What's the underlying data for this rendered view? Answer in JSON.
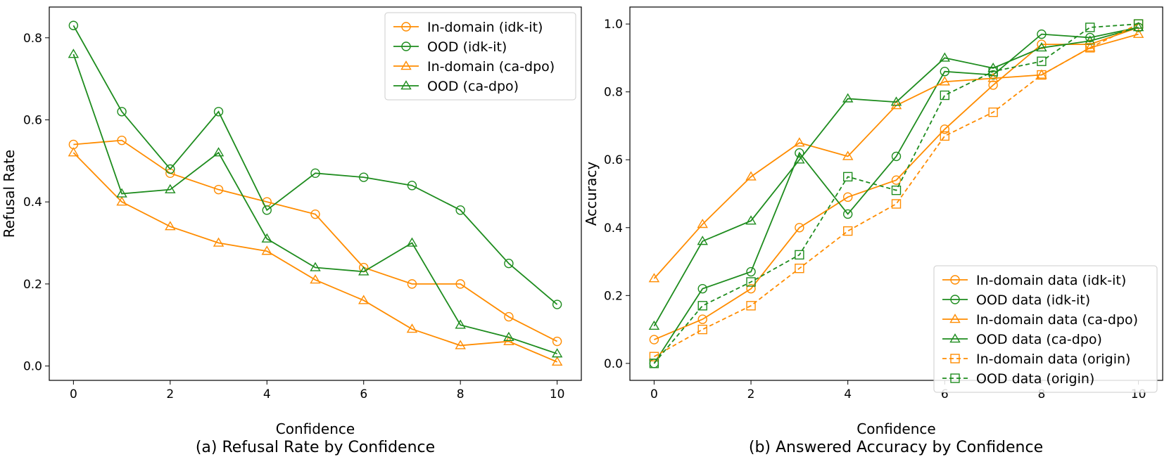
{
  "chart_data": [
    {
      "type": "line",
      "caption": "(a) Refusal Rate by Confidence",
      "xlabel": "Confidence",
      "ylabel": "Refusal Rate",
      "xlim": [
        -0.5,
        10.5
      ],
      "ylim": [
        -0.035,
        0.875
      ],
      "xticks": [
        0,
        2,
        4,
        6,
        8,
        10
      ],
      "xtick_labels": [
        "0",
        "2",
        "4",
        "6",
        "8",
        "10"
      ],
      "yticks": [
        0.0,
        0.2,
        0.4,
        0.6,
        0.8
      ],
      "ytick_labels": [
        "0.0",
        "0.2",
        "0.4",
        "0.6",
        "0.8"
      ],
      "legend_position": "top-right",
      "x": [
        0,
        1,
        2,
        3,
        4,
        5,
        6,
        7,
        8,
        9,
        10
      ],
      "series": [
        {
          "name": "In-domain (idk-it)",
          "color": "#ff8c00",
          "marker": "circle",
          "dashed": false,
          "values": [
            0.54,
            0.55,
            0.47,
            0.43,
            0.4,
            0.37,
            0.24,
            0.2,
            0.2,
            0.12,
            0.06
          ]
        },
        {
          "name": "OOD (idk-it)",
          "color": "#1e8c1e",
          "marker": "circle",
          "dashed": false,
          "values": [
            0.83,
            0.62,
            0.48,
            0.62,
            0.38,
            0.47,
            0.46,
            0.44,
            0.38,
            0.25,
            0.15
          ]
        },
        {
          "name": "In-domain (ca-dpo)",
          "color": "#ff8c00",
          "marker": "triangle",
          "dashed": false,
          "values": [
            0.52,
            0.4,
            0.34,
            0.3,
            0.28,
            0.21,
            0.16,
            0.09,
            0.05,
            0.06,
            0.01
          ]
        },
        {
          "name": "OOD (ca-dpo)",
          "color": "#1e8c1e",
          "marker": "triangle",
          "dashed": false,
          "values": [
            0.76,
            0.42,
            0.43,
            0.52,
            0.31,
            0.24,
            0.23,
            0.3,
            0.1,
            0.07,
            0.03
          ]
        }
      ]
    },
    {
      "type": "line",
      "caption": "(b) Answered Accuracy by Confidence",
      "xlabel": "Confidence",
      "ylabel": "Accuracy",
      "xlim": [
        -0.5,
        10.5
      ],
      "ylim": [
        -0.05,
        1.05
      ],
      "xticks": [
        0,
        2,
        4,
        6,
        8,
        10
      ],
      "xtick_labels": [
        "0",
        "2",
        "4",
        "6",
        "8",
        "10"
      ],
      "yticks": [
        0.0,
        0.2,
        0.4,
        0.6,
        0.8,
        1.0
      ],
      "ytick_labels": [
        "0.0",
        "0.2",
        "0.4",
        "0.6",
        "0.8",
        "1.0"
      ],
      "legend_position": "bottom-right",
      "x": [
        0,
        1,
        2,
        3,
        4,
        5,
        6,
        7,
        8,
        9,
        10
      ],
      "series": [
        {
          "name": "In-domain data (idk-it)",
          "color": "#ff8c00",
          "marker": "circle",
          "dashed": false,
          "values": [
            0.07,
            0.13,
            0.22,
            0.4,
            0.49,
            0.54,
            0.69,
            0.82,
            0.94,
            0.94,
            0.99
          ]
        },
        {
          "name": "OOD data (idk-it)",
          "color": "#1e8c1e",
          "marker": "circle",
          "dashed": false,
          "values": [
            0.0,
            0.22,
            0.27,
            0.62,
            0.44,
            0.61,
            0.86,
            0.85,
            0.97,
            0.96,
            0.99
          ]
        },
        {
          "name": "In-domain data (ca-dpo)",
          "color": "#ff8c00",
          "marker": "triangle",
          "dashed": false,
          "values": [
            0.25,
            0.41,
            0.55,
            0.65,
            0.61,
            0.76,
            0.83,
            0.84,
            0.85,
            0.93,
            0.97
          ]
        },
        {
          "name": "OOD data (ca-dpo)",
          "color": "#1e8c1e",
          "marker": "triangle",
          "dashed": false,
          "values": [
            0.11,
            0.36,
            0.42,
            0.6,
            0.78,
            0.77,
            0.9,
            0.87,
            0.93,
            0.95,
            0.99
          ]
        },
        {
          "name": "In-domain data (origin)",
          "color": "#ff8c00",
          "marker": "square",
          "dashed": true,
          "values": [
            0.02,
            0.1,
            0.17,
            0.28,
            0.39,
            0.47,
            0.67,
            0.74,
            0.85,
            0.93,
            1.0
          ]
        },
        {
          "name": "OOD data (origin)",
          "color": "#1e8c1e",
          "marker": "square",
          "dashed": true,
          "values": [
            0.0,
            0.17,
            0.24,
            0.32,
            0.55,
            0.51,
            0.79,
            0.86,
            0.89,
            0.99,
            1.0
          ]
        }
      ]
    }
  ]
}
